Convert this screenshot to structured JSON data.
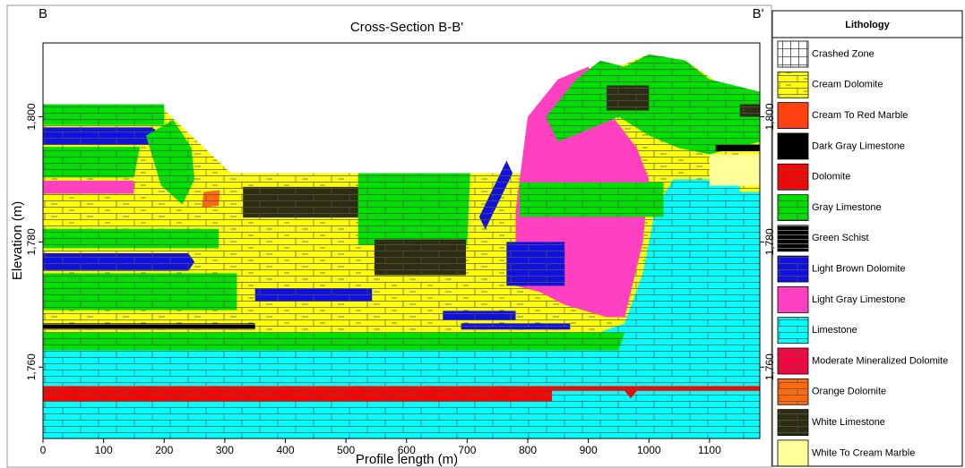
{
  "chart_data": {
    "type": "cross-section",
    "title": "Cross-Section B-B'",
    "section_start": "B",
    "section_end": "B'",
    "x_label": "Profile length (m)",
    "y_label": "Elevation (m)",
    "xlim": [
      0,
      1183
    ],
    "ylim": [
      1748.6,
      1811.8
    ],
    "xticks": [
      0,
      100,
      200,
      300,
      400,
      500,
      600,
      700,
      800,
      900,
      1000,
      1100
    ],
    "yticks": [
      {
        "value": 1760,
        "label": "1,760"
      },
      {
        "value": 1780,
        "label": "1,780"
      },
      {
        "value": 1800,
        "label": "1,800"
      }
    ],
    "legend_title": "Lithology",
    "lithology": [
      {
        "name": "Crashed Zone",
        "color": "#ffffff",
        "pattern": "grid"
      },
      {
        "name": "Cream Dolomite",
        "color": "#ffff00",
        "pattern": "dash-brick"
      },
      {
        "name": "Cream To Red Marble",
        "color": "#ff4010",
        "pattern": "none"
      },
      {
        "name": "Dark Gray Limestone",
        "color": "#000000",
        "pattern": "none"
      },
      {
        "name": "Dolomite",
        "color": "#ff0000",
        "pattern": "dash-brick"
      },
      {
        "name": "Gray Limestone",
        "color": "#00e000",
        "pattern": "brick"
      },
      {
        "name": "Green Schist",
        "color": "#000000",
        "pattern": "lines"
      },
      {
        "name": "Light Brown Dolomite",
        "color": "#1010e0",
        "pattern": "brick"
      },
      {
        "name": "Light Gray Limestone",
        "color": "#ff40c0",
        "pattern": "none"
      },
      {
        "name": "Limestone",
        "color": "#00ffff",
        "pattern": "brick"
      },
      {
        "name": "Moderate Mineralized Dolomite",
        "color": "#ff0040",
        "pattern": "brick"
      },
      {
        "name": "Orange Dolomite",
        "color": "#ff6a10",
        "pattern": "brick"
      },
      {
        "name": "White Limestone",
        "color": "#2d2d10",
        "pattern": "brick"
      },
      {
        "name": "White To Cream Marble",
        "color": "#ffff99",
        "pattern": "none"
      }
    ],
    "regions": [
      {
        "lithology": 9,
        "x": [
          0,
          1183,
          1183,
          0
        ],
        "y": [
          1748.6,
          1748.6,
          1756.2,
          1756.2
        ]
      },
      {
        "lithology": 4,
        "x": [
          0,
          840,
          840,
          0
        ],
        "y": [
          1754.5,
          1754.5,
          1757,
          1757
        ]
      },
      {
        "lithology": 4,
        "x": [
          840,
          960,
          970,
          980,
          1183,
          1183,
          840
        ],
        "y": [
          1756.2,
          1756.2,
          1755,
          1756.2,
          1756.2,
          1757,
          1757
        ]
      },
      {
        "lithology": 1,
        "x": [
          0,
          190,
          310,
          800,
          870,
          950,
          1000,
          1060,
          1120,
          1183,
          1183,
          0
        ],
        "y": [
          1802,
          1802,
          1791,
          1791,
          1800,
          1808,
          1810,
          1809,
          1805,
          1803,
          1757,
          1757
        ]
      },
      {
        "lithology": 9,
        "x": [
          1040,
          1150,
          1150,
          1183,
          1183,
          0,
          0,
          860,
          960,
          990,
          1010
        ],
        "y": [
          1790,
          1790,
          1788,
          1788,
          1757,
          1757,
          1763.5,
          1763.5,
          1767,
          1775,
          1785
        ]
      },
      {
        "lithology": 5,
        "x": [
          0,
          950,
          960,
          0
        ],
        "y": [
          1762.7,
          1762.7,
          1765.5,
          1765.5
        ]
      },
      {
        "lithology": 6,
        "x": [
          0,
          350,
          350,
          0
        ],
        "y": [
          1766,
          1766,
          1767,
          1767
        ]
      },
      {
        "lithology": 5,
        "x": [
          0,
          320,
          320,
          0
        ],
        "y": [
          1769.1,
          1769.1,
          1775,
          1775
        ]
      },
      {
        "lithology": 7,
        "x": [
          0,
          240,
          250,
          240,
          0
        ],
        "y": [
          1775.4,
          1775.4,
          1776.8,
          1778.2,
          1778.2
        ]
      },
      {
        "lithology": 5,
        "x": [
          0,
          290,
          290,
          0
        ],
        "y": [
          1779,
          1779,
          1782.1,
          1782.1
        ]
      },
      {
        "lithology": 8,
        "x": [
          0,
          150,
          150,
          0
        ],
        "y": [
          1787.7,
          1787.7,
          1789.8,
          1789.8
        ]
      },
      {
        "lithology": 5,
        "x": [
          0,
          150,
          160,
          0
        ],
        "y": [
          1790.3,
          1790.3,
          1795.2,
          1795.2
        ]
      },
      {
        "lithology": 7,
        "x": [
          0,
          180,
          200,
          180,
          0
        ],
        "y": [
          1795.5,
          1795.5,
          1796.9,
          1798.3,
          1798.3
        ]
      },
      {
        "lithology": 5,
        "x": [
          0,
          200,
          200,
          0
        ],
        "y": [
          1798.7,
          1798.7,
          1802,
          1802
        ]
      },
      {
        "lithology": 5,
        "x": [
          170,
          215,
          245,
          250,
          230,
          195
        ],
        "y": [
          1797,
          1799.5,
          1795,
          1790,
          1786,
          1789
        ]
      },
      {
        "lithology": 11,
        "x": [
          262,
          290,
          292,
          265
        ],
        "y": [
          1785.5,
          1785.8,
          1788.3,
          1788
        ]
      },
      {
        "lithology": 12,
        "x": [
          330,
          520,
          525,
          330
        ],
        "y": [
          1783.9,
          1783.9,
          1788.8,
          1788.8
        ]
      },
      {
        "lithology": 5,
        "x": [
          520,
          700,
          705,
          520
        ],
        "y": [
          1779.5,
          1779.5,
          1791,
          1791
        ]
      },
      {
        "lithology": 12,
        "x": [
          547,
          698,
          698,
          547
        ],
        "y": [
          1774.7,
          1774.7,
          1780.4,
          1780.4
        ]
      },
      {
        "lithology": 7,
        "x": [
          350,
          543,
          543,
          350
        ],
        "y": [
          1770.5,
          1770.5,
          1772.6,
          1772.6
        ]
      },
      {
        "lithology": 7,
        "x": [
          660,
          780,
          780,
          660
        ],
        "y": [
          1767.5,
          1767.5,
          1769,
          1769
        ]
      },
      {
        "lithology": 7,
        "x": [
          690,
          870,
          870,
          690
        ],
        "y": [
          1766,
          1766,
          1767,
          1767
        ]
      },
      {
        "lithology": 8,
        "x": [
          780,
          800,
          850,
          900,
          940,
          980,
          1000,
          990,
          960,
          930,
          860,
          820,
          780
        ],
        "y": [
          1785,
          1800,
          1806,
          1808,
          1800,
          1795,
          1790,
          1780,
          1768,
          1768,
          1770,
          1772,
          1773
        ]
      },
      {
        "lithology": 7,
        "x": [
          765,
          861,
          861,
          765
        ],
        "y": [
          1773,
          1773,
          1780,
          1780
        ]
      },
      {
        "lithology": 5,
        "x": [
          787,
          1024,
          1024,
          787
        ],
        "y": [
          1784,
          1784,
          1789.5,
          1789.5
        ]
      },
      {
        "lithology": 5,
        "x": [
          830,
          880,
          920,
          960,
          1000,
          1060,
          1100,
          1183,
          1183,
          1100,
          1050,
          1000,
          950,
          900,
          850
        ],
        "y": [
          1800,
          1806,
          1809,
          1808,
          1810,
          1809,
          1806,
          1804,
          1796,
          1794,
          1795,
          1797,
          1800,
          1798,
          1796
        ]
      },
      {
        "lithology": 12,
        "x": [
          930,
          1000,
          1000,
          930
        ],
        "y": [
          1801,
          1801,
          1805,
          1805
        ]
      },
      {
        "lithology": 12,
        "x": [
          1150,
          1183,
          1183,
          1150
        ],
        "y": [
          1800,
          1800,
          1802,
          1802
        ]
      },
      {
        "lithology": 3,
        "x": [
          1110,
          1183,
          1183,
          1110
        ],
        "y": [
          1794.5,
          1794.5,
          1795.5,
          1795.5
        ]
      },
      {
        "lithology": 13,
        "x": [
          1100,
          1183,
          1183,
          1100
        ],
        "y": [
          1789,
          1789,
          1794,
          1794
        ]
      },
      {
        "lithology": 7,
        "x": [
          720,
          765,
          775,
          730
        ],
        "y": [
          1784,
          1793,
          1791,
          1782
        ]
      }
    ]
  }
}
